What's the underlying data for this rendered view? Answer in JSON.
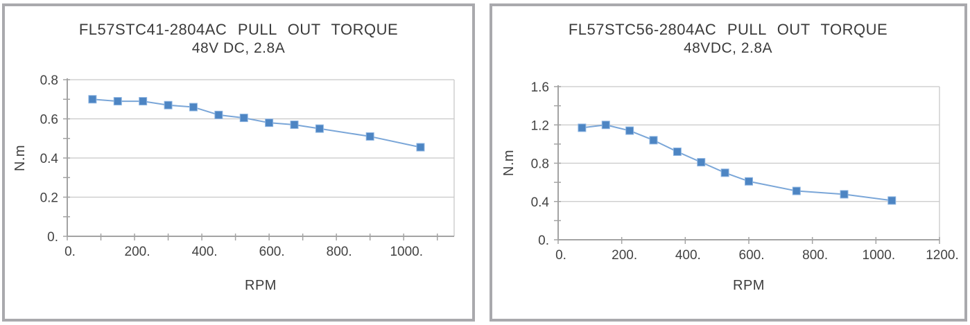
{
  "colors": {
    "line": "#7aa6d8",
    "marker_fill": "#4d85c3",
    "marker_edge": "#8fb6e2",
    "gridline": "#c8c8c8",
    "axis": "#a3a3a3",
    "text": "#3d3d3d",
    "panel_border": "#a9a9ad",
    "background": "#ffffff"
  },
  "chart_data": [
    {
      "type": "line",
      "title": "FL57STC41-2804AC  PULL  OUT  TORQUE",
      "subtitle": "48V DC, 2.8A",
      "xlabel": "RPM",
      "ylabel": "N.m",
      "x": [
        75,
        150,
        225,
        300,
        375,
        450,
        525,
        600,
        675,
        750,
        900,
        1050
      ],
      "y": [
        0.7,
        0.69,
        0.69,
        0.67,
        0.66,
        0.62,
        0.605,
        0.58,
        0.57,
        0.55,
        0.51,
        0.455
      ],
      "xlim": [
        0,
        1150
      ],
      "ylim": [
        0,
        0.8
      ],
      "x_major_ticks": [
        0,
        200,
        400,
        600,
        800,
        1000
      ],
      "x_tick_labels": [
        "0.",
        "200.",
        "400.",
        "600.",
        "800.",
        "1000."
      ],
      "x_minor_step": 100,
      "y_major_ticks": [
        0,
        0.2,
        0.4,
        0.6,
        0.8
      ],
      "y_tick_labels": [
        "0.",
        "0.2",
        "0.4",
        "0.6",
        "0.8"
      ],
      "y_minor_step": 0.1,
      "grid": "horizontal-majors",
      "legend": "none",
      "marker": "square"
    },
    {
      "type": "line",
      "title": "FL57STC56-2804AC  PULL  OUT   TORQUE",
      "subtitle": "48VDC, 2.8A",
      "xlabel": "RPM",
      "ylabel": "N.m",
      "x": [
        75,
        150,
        225,
        300,
        375,
        450,
        525,
        600,
        750,
        900,
        1050
      ],
      "y": [
        1.17,
        1.2,
        1.14,
        1.04,
        0.92,
        0.81,
        0.7,
        0.61,
        0.51,
        0.475,
        0.41
      ],
      "xlim": [
        0,
        1200
      ],
      "ylim": [
        0,
        1.6
      ],
      "x_major_ticks": [
        0,
        200,
        400,
        600,
        800,
        1000,
        1200
      ],
      "x_tick_labels": [
        "0.",
        "200.",
        "400.",
        "600.",
        "800.",
        "1000.",
        "1200."
      ],
      "x_minor_step": null,
      "y_major_ticks": [
        0,
        0.4,
        0.8,
        1.2,
        1.6
      ],
      "y_tick_labels": [
        "0.",
        "0.4",
        "0.8",
        "1.2",
        "1.6"
      ],
      "y_minor_step": 0.2,
      "grid": "horizontal-majors",
      "legend": "none",
      "marker": "square"
    }
  ]
}
